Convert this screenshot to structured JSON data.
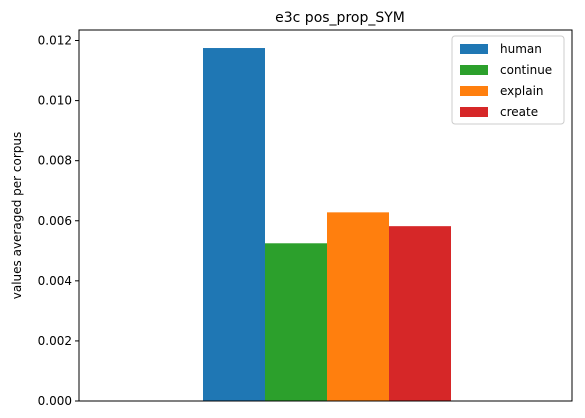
{
  "chart_data": {
    "type": "bar",
    "title": "e3c pos_prop_SYM",
    "xlabel": "",
    "ylabel": "values averaged per corpus",
    "ylim": [
      0,
      0.01235
    ],
    "yticks": [
      "0.000",
      "0.002",
      "0.004",
      "0.006",
      "0.008",
      "0.010",
      "0.012"
    ],
    "ytick_values": [
      0,
      0.002,
      0.004,
      0.006,
      0.008,
      0.01,
      0.012
    ],
    "grid": false,
    "legend_position": "top-right",
    "series": [
      {
        "name": "human",
        "value": 0.01175,
        "color": "#1f77b4"
      },
      {
        "name": "continue",
        "value": 0.00525,
        "color": "#2ca02c"
      },
      {
        "name": "explain",
        "value": 0.00628,
        "color": "#ff7f0e"
      },
      {
        "name": "create",
        "value": 0.00582,
        "color": "#d62728"
      }
    ]
  }
}
